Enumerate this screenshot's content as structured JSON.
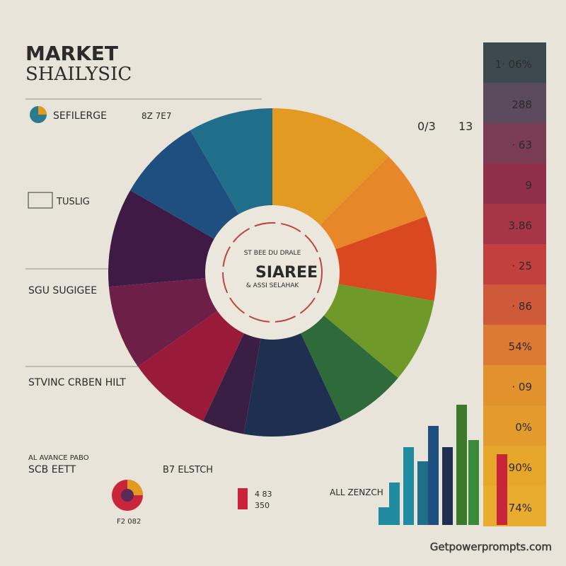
{
  "header": {
    "title_line1": "MARKET",
    "title_line2": "SHAILYSIC"
  },
  "sections": [
    {
      "title": "SEFILERGE",
      "note": "8Z 7E7"
    },
    {
      "title": "TUSLIG"
    },
    {
      "title": "SGU SUGIGEE"
    },
    {
      "title": "STVINC CRBEN HILT"
    },
    {
      "title": "SCB EETT",
      "kicker": "AL AVANCE PABO"
    },
    {
      "title": "B7 ELSTCH"
    }
  ],
  "donut": {
    "center_title": "SIAREE",
    "center_top": "ST BEE DU DRALE",
    "center_bottom": "& ASSI SELAHAK",
    "callout": "0/3",
    "callout_right": "13"
  },
  "strip_labels": [
    "1· 06%",
    "288",
    "· 63",
    "9",
    "3.86",
    "· 25",
    "· 86",
    "54%",
    "· 09",
    "0%",
    "90%",
    "74%"
  ],
  "bottom": {
    "pie_label": "F2 082",
    "stat1": "4 83",
    "stat2": "350",
    "bars_title": "ALL ZENZCH"
  },
  "footer": {
    "watermark": "Getpowerprompts.com"
  }
}
